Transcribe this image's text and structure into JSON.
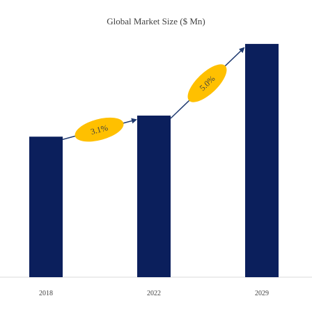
{
  "chart_data": {
    "type": "bar",
    "title": "Global Market Size ($ Mn)",
    "categories": [
      "2018",
      "2022",
      "2029"
    ],
    "values": [
      100,
      115,
      166
    ],
    "xlabel": "",
    "ylabel": "",
    "ylim": [
      0,
      170
    ],
    "grid": false,
    "legend": "none",
    "bar_color": "#0b1f5c",
    "annotations": [
      {
        "from": 0,
        "to": 1,
        "label": "3.1%"
      },
      {
        "from": 1,
        "to": 2,
        "label": "5.0%"
      }
    ],
    "annotation_fill": "#ffc000",
    "arrow_color": "#1f3a70"
  }
}
